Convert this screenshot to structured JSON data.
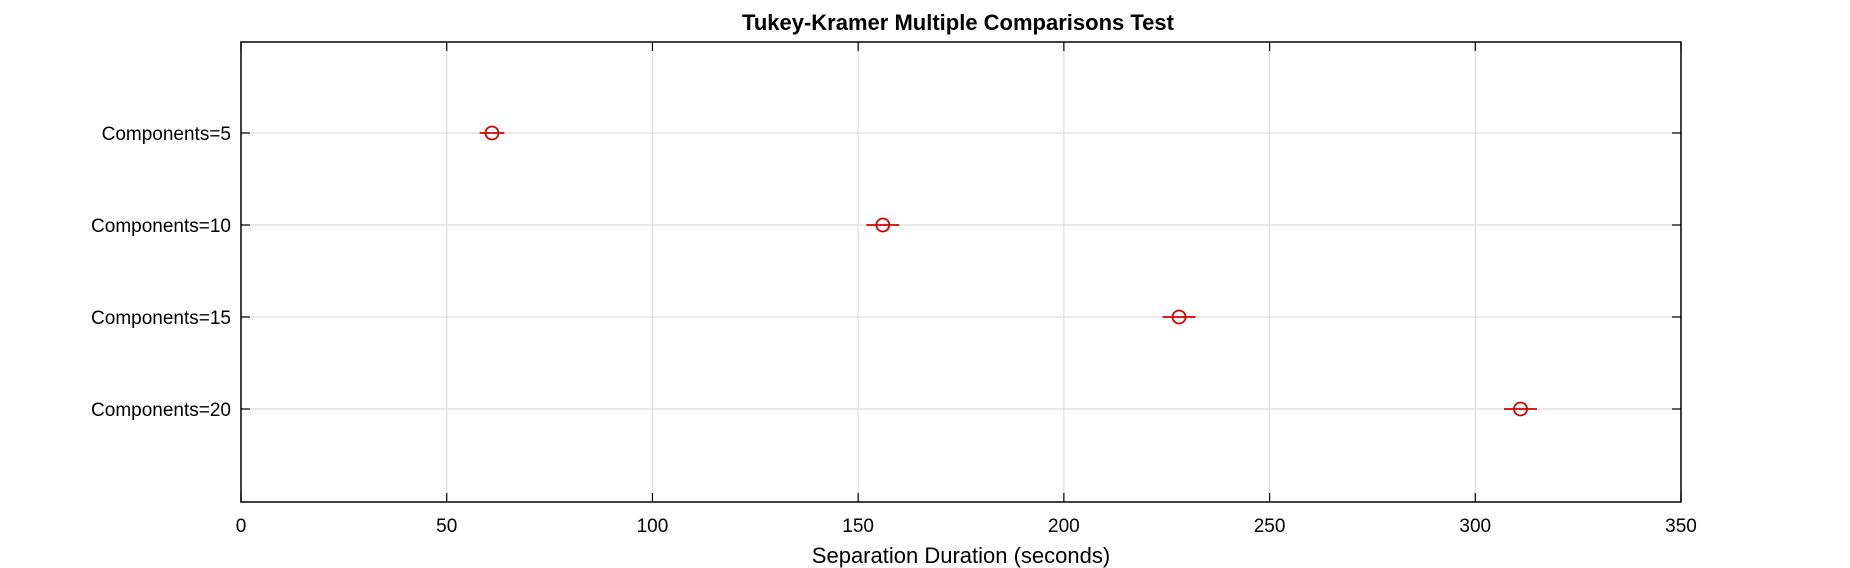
{
  "chart_data": {
    "type": "scatter",
    "title": "Tukey-Kramer Multiple Comparisons Test",
    "xlabel": "Separation Duration (seconds)",
    "ylabel": "",
    "xlim": [
      0,
      350
    ],
    "xticks": [
      0,
      50,
      100,
      150,
      200,
      250,
      300,
      350
    ],
    "xtick_labels": [
      "0",
      "50",
      "100",
      "150",
      "200",
      "250",
      "300",
      "350"
    ],
    "grid": true,
    "categories": [
      "Components=5",
      "Components=10",
      "Components=15",
      "Components=20"
    ],
    "series": [
      {
        "values": [
          61,
          156,
          228,
          311
        ],
        "lower": [
          58,
          152,
          224,
          307
        ],
        "upper": [
          64,
          160,
          232,
          315
        ]
      }
    ],
    "marker": "circle",
    "marker_color": "#d40000",
    "grid_color": "#dcdcdc",
    "axis_color": "#000000"
  }
}
